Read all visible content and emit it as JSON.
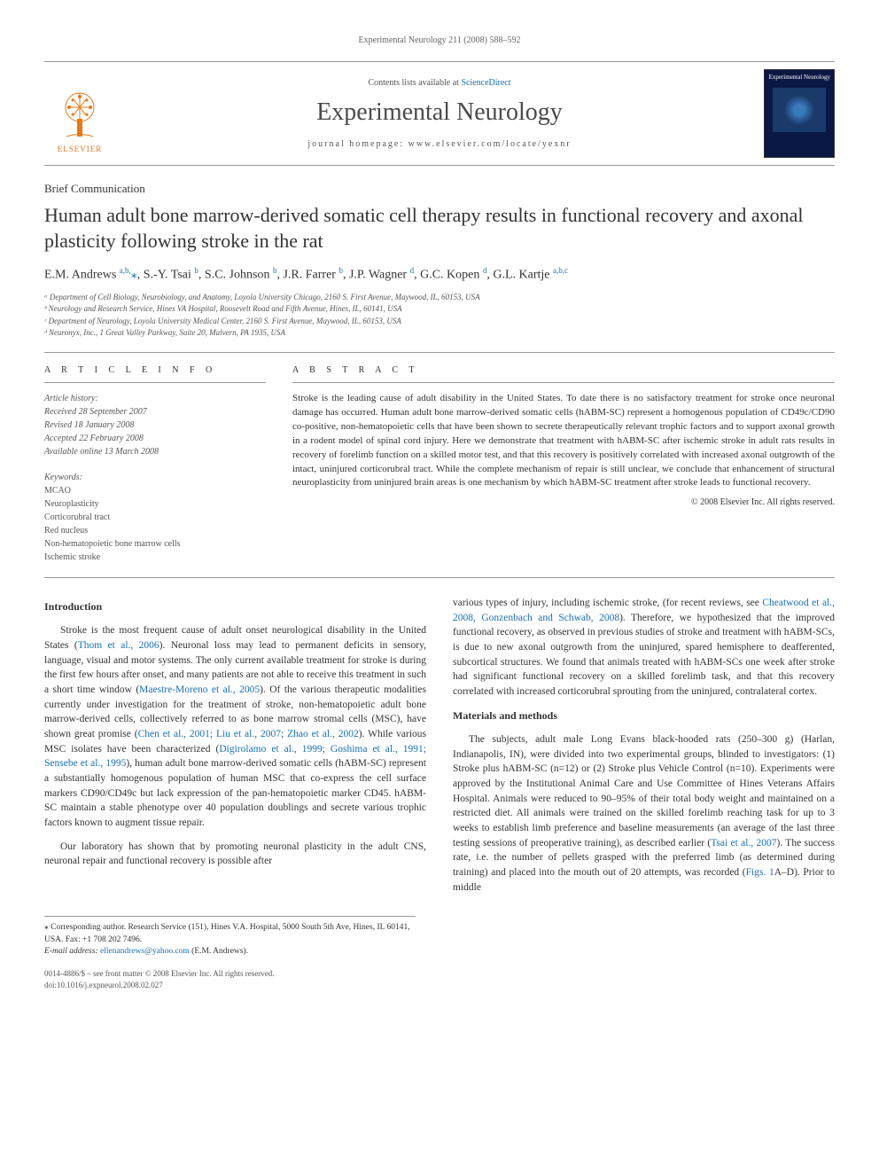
{
  "running_head": "Experimental Neurology 211 (2008) 588–592",
  "masthead": {
    "contents_text": "Contents lists available at ",
    "contents_link": "ScienceDirect",
    "journal": "Experimental Neurology",
    "homepage_label": "journal homepage: ",
    "homepage_url": "www.elsevier.com/locate/yexnr",
    "publisher": "ELSEVIER",
    "cover_title": "Experimental Neurology"
  },
  "article": {
    "type": "Brief Communication",
    "title": "Human adult bone marrow-derived somatic cell therapy results in functional recovery and axonal plasticity following stroke in the rat",
    "authors_html": "E.M. Andrews <sup>a,b,</sup><span class='star'>⁎</span>, S.-Y. Tsai <sup>b</sup>, S.C. Johnson <sup>b</sup>, J.R. Farrer <sup>b</sup>, J.P. Wagner <sup>d</sup>, G.C. Kopen <sup>d</sup>, G.L. Kartje <sup>a,b,c</sup>",
    "affiliations": [
      "ᵃ Department of Cell Biology, Neurobiology, and Anatomy, Loyola University Chicago, 2160 S. First Avenue, Maywood, IL, 60153, USA",
      "ᵇ Neurology and Research Service, Hines VA Hospital, Roosevelt Road and Fifth Avenue, Hines, IL, 60141, USA",
      "ᶜ Department of Neurology, Loyola University Medical Center, 2160 S. First Avenue, Maywood, IL, 60153, USA",
      "ᵈ Neuronyx, Inc., 1 Great Valley Parkway, Suite 20, Malvern, PA 1935, USA"
    ]
  },
  "info": {
    "heading": "A R T I C L E   I N F O",
    "history_label": "Article history:",
    "history": [
      "Received 28 September 2007",
      "Revised 18 January 2008",
      "Accepted 22 February 2008",
      "Available online 13 March 2008"
    ],
    "keywords_label": "Keywords:",
    "keywords": [
      "MCAO",
      "Neuroplasticity",
      "Corticorubral tract",
      "Red nucleus",
      "Non-hematopoietic bone marrow cells",
      "Ischemic stroke"
    ]
  },
  "abstract": {
    "heading": "A B S T R A C T",
    "text": "Stroke is the leading cause of adult disability in the United States. To date there is no satisfactory treatment for stroke once neuronal damage has occurred. Human adult bone marrow-derived somatic cells (hABM-SC) represent a homogenous population of CD49c/CD90 co-positive, non-hematopoietic cells that have been shown to secrete therapeutically relevant trophic factors and to support axonal growth in a rodent model of spinal cord injury. Here we demonstrate that treatment with hABM-SC after ischemic stroke in adult rats results in recovery of forelimb function on a skilled motor test, and that this recovery is positively correlated with increased axonal outgrowth of the intact, uninjured corticorubral tract. While the complete mechanism of repair is still unclear, we conclude that enhancement of structural neuroplasticity from uninjured brain areas is one mechanism by which hABM-SC treatment after stroke leads to functional recovery.",
    "copyright": "© 2008 Elsevier Inc. All rights reserved."
  },
  "body": {
    "intro_heading": "Introduction",
    "intro_p1_a": "Stroke is the most frequent cause of adult onset neurological disability in the United States (",
    "intro_p1_cite1": "Thom et al., 2006",
    "intro_p1_b": "). Neuronal loss may lead to permanent deficits in sensory, language, visual and motor systems. The only current available treatment for stroke is during the first few hours after onset, and many patients are not able to receive this treatment in such a short time window (",
    "intro_p1_cite2": "Maestre-Moreno et al., 2005",
    "intro_p1_c": "). Of the various therapeutic modalities currently under investigation for the treatment of stroke, non-hematopoietic adult bone marrow-derived cells, collectively referred to as bone marrow stromal cells (MSC), have shown great promise (",
    "intro_p1_cite3": "Chen et al., 2001; Liu et al., 2007; Zhao et al., 2002",
    "intro_p1_d": "). While various MSC isolates have been characterized (",
    "intro_p1_cite4": "Digirolamo et al., 1999; Goshima et al., 1991; Sensebe et al., 1995",
    "intro_p1_e": "), human adult bone marrow-derived somatic cells (hABM-SC) represent a substantially homogenous population of human MSC that co-express the cell surface markers CD90/CD49c but lack expression of the pan-hematopoietic marker CD45. hABM-SC maintain a stable phenotype over 40 population doublings and secrete various trophic factors known to augment tissue repair.",
    "intro_p2": "Our laboratory has shown that by promoting neuronal plasticity in the adult CNS, neuronal repair and functional recovery is possible after",
    "col2_p1_a": "various types of injury, including ischemic stroke, (for recent reviews, see ",
    "col2_p1_cite1": "Cheatwood et al., 2008, Gonzenbach and Schwab, 2008",
    "col2_p1_b": "). Therefore, we hypothesized that the improved functional recovery, as observed in previous studies of stroke and treatment with hABM-SCs, is due to new axonal outgrowth from the uninjured, spared hemisphere to deafferented, subcortical structures. We found that animals treated with hABM-SCs one week after stroke had significant functional recovery on a skilled forelimb task, and that this recovery correlated with increased corticorubral sprouting from the uninjured, contralateral cortex.",
    "mm_heading": "Materials and methods",
    "mm_p1_a": "The subjects, adult male Long Evans black-hooded rats (250–300 g) (Harlan, Indianapolis, IN), were divided into two experimental groups, blinded to investigators: (1) Stroke plus hABM-SC (n=12) or (2) Stroke plus Vehicle Control (n=10). Experiments were approved by the Institutional Animal Care and Use Committee of Hines Veterans Affairs Hospital. Animals were reduced to 90–95% of their total body weight and maintained on a restricted diet. All animals were trained on the skilled forelimb reaching task for up to 3 weeks to establish limb preference and baseline measurements (an average of the last three testing sessions of preoperative training), as described earlier (",
    "mm_p1_cite1": "Tsai et al., 2007",
    "mm_p1_b": "). The success rate, i.e. the number of pellets grasped with the preferred limb (as determined during training) and placed into the mouth out of 20 attempts, was recorded (",
    "mm_p1_cite2": "Figs. 1",
    "mm_p1_c": "A–D). Prior to middle"
  },
  "footnotes": {
    "corr": "⁎ Corresponding author. Research Service (151), Hines V.A. Hospital, 5000 South 5th Ave, Hines, IL 60141, USA. Fax: +1 708 202 7496.",
    "email_label": "E-mail address: ",
    "email": "ellenandrews@yahoo.com",
    "email_tail": " (E.M. Andrews)."
  },
  "footer": {
    "line1": "0014-4886/$ – see front matter © 2008 Elsevier Inc. All rights reserved.",
    "line2": "doi:10.1016/j.expneurol.2008.02.027"
  },
  "colors": {
    "link": "#1a6fb3",
    "orange": "#e77817",
    "text": "#333333",
    "muted": "#555555"
  }
}
